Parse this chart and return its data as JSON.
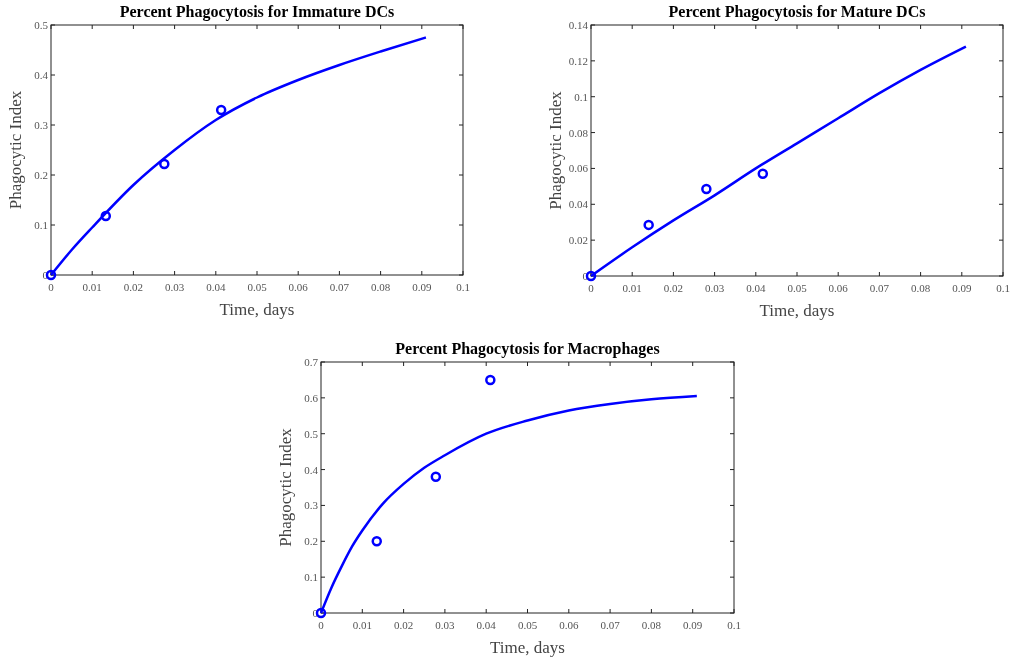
{
  "chart_data": [
    {
      "type": "scatter",
      "title": "Percent Phagocytosis for Immature DCs",
      "xlabel": "Time, days",
      "ylabel": "Phagocytic Index",
      "xlim": [
        0,
        0.1
      ],
      "xticks": [
        0,
        0.01,
        0.02,
        0.03,
        0.04,
        0.05,
        0.06,
        0.07,
        0.08,
        0.09,
        0.1
      ],
      "ylim": [
        0,
        0.5
      ],
      "yticks": [
        0,
        0.1,
        0.2,
        0.3,
        0.4,
        0.5
      ],
      "series": [
        {
          "marker": "circle",
          "color": "#0000ff",
          "x": [
            0,
            0.0133,
            0.0275,
            0.0413
          ],
          "values": [
            0,
            0.118,
            0.222,
            0.33
          ]
        },
        {
          "type": "line",
          "color": "#0000ff",
          "x": [
            0,
            0.005,
            0.01,
            0.02,
            0.03,
            0.04,
            0.05,
            0.06,
            0.07,
            0.08,
            0.091
          ],
          "values": [
            0,
            0.05,
            0.095,
            0.18,
            0.25,
            0.31,
            0.355,
            0.39,
            0.42,
            0.447,
            0.475
          ]
        }
      ]
    },
    {
      "type": "scatter",
      "title": "Percent Phagocytosis for Mature DCs",
      "xlabel": "Time, days",
      "ylabel": "Phagocytic Index",
      "xlim": [
        0,
        0.1
      ],
      "xticks": [
        0,
        0.01,
        0.02,
        0.03,
        0.04,
        0.05,
        0.06,
        0.07,
        0.08,
        0.09,
        0.1
      ],
      "ylim": [
        0,
        0.14
      ],
      "yticks": [
        0,
        0.02,
        0.04,
        0.06,
        0.08,
        0.1,
        0.12,
        0.14
      ],
      "series": [
        {
          "marker": "circle",
          "color": "#0000ff",
          "x": [
            0,
            0.014,
            0.028,
            0.0417
          ],
          "values": [
            0,
            0.0285,
            0.0485,
            0.057
          ]
        },
        {
          "type": "line",
          "color": "#0000ff",
          "x": [
            0,
            0.01,
            0.02,
            0.03,
            0.04,
            0.05,
            0.06,
            0.07,
            0.08,
            0.091
          ],
          "values": [
            0,
            0.016,
            0.031,
            0.045,
            0.06,
            0.074,
            0.088,
            0.102,
            0.115,
            0.128
          ]
        }
      ]
    },
    {
      "type": "scatter",
      "title": "Percent Phagocytosis for Macrophages",
      "xlabel": "Time, days",
      "ylabel": "Phagocytic Index",
      "xlim": [
        0,
        0.1
      ],
      "xticks": [
        0,
        0.01,
        0.02,
        0.03,
        0.04,
        0.05,
        0.06,
        0.07,
        0.08,
        0.09,
        0.1
      ],
      "ylim": [
        0,
        0.7
      ],
      "yticks": [
        0,
        0.1,
        0.2,
        0.3,
        0.4,
        0.5,
        0.6,
        0.7
      ],
      "series": [
        {
          "marker": "circle",
          "color": "#0000ff",
          "x": [
            0,
            0.0135,
            0.0278,
            0.041
          ],
          "values": [
            0,
            0.2,
            0.38,
            0.65
          ]
        },
        {
          "type": "line",
          "color": "#0000ff",
          "x": [
            0,
            0.0025,
            0.005,
            0.0075,
            0.01,
            0.015,
            0.02,
            0.025,
            0.03,
            0.04,
            0.05,
            0.06,
            0.07,
            0.08,
            0.091
          ],
          "values": [
            0,
            0.07,
            0.13,
            0.185,
            0.23,
            0.305,
            0.36,
            0.405,
            0.44,
            0.5,
            0.537,
            0.565,
            0.583,
            0.596,
            0.605
          ]
        }
      ]
    }
  ]
}
